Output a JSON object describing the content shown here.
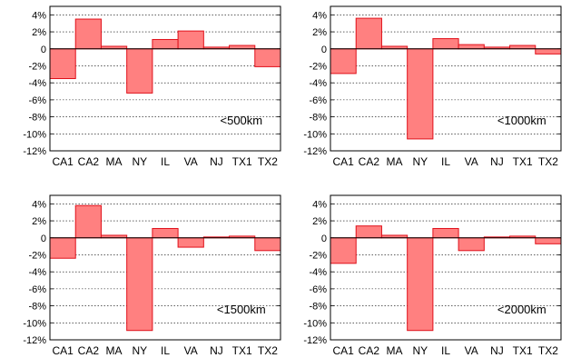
{
  "chart_data": [
    {
      "type": "bar",
      "annotation": "<500km",
      "categories": [
        "CA1",
        "CA2",
        "MA",
        "NY",
        "IL",
        "VA",
        "NJ",
        "TX1",
        "TX2"
      ],
      "values": [
        -3.5,
        3.5,
        0.3,
        -5.2,
        1.1,
        2.1,
        0.2,
        0.4,
        -2.1
      ],
      "ylim": [
        -12,
        5
      ],
      "yticks": [
        -12,
        -10,
        -8,
        -6,
        -4,
        -2,
        0,
        2,
        4
      ],
      "ytick_labels": [
        "-12%",
        "-10%",
        "-8%",
        "-6%",
        "-4%",
        "-2%",
        "0",
        "2%",
        "4%"
      ],
      "grid": true,
      "bar_color": "#ff8080",
      "edge_color": "#e0101a"
    },
    {
      "type": "bar",
      "annotation": "<1000km",
      "categories": [
        "CA1",
        "CA2",
        "MA",
        "NY",
        "IL",
        "VA",
        "NJ",
        "TX1",
        "TX2"
      ],
      "values": [
        -2.9,
        3.6,
        0.3,
        -10.6,
        1.2,
        0.5,
        0.2,
        0.4,
        -0.6
      ],
      "ylim": [
        -12,
        5
      ],
      "yticks": [
        -12,
        -10,
        -8,
        -6,
        -4,
        -2,
        0,
        2,
        4
      ],
      "ytick_labels": [
        "-12%",
        "-10%",
        "-8%",
        "-6%",
        "-4%",
        "-2%",
        "0",
        "2%",
        "4%"
      ],
      "grid": true,
      "bar_color": "#ff8080",
      "edge_color": "#e0101a"
    },
    {
      "type": "bar",
      "annotation": "<1500km",
      "categories": [
        "CA1",
        "CA2",
        "MA",
        "NY",
        "IL",
        "VA",
        "NJ",
        "TX1",
        "TX2"
      ],
      "values": [
        -2.4,
        3.8,
        0.3,
        -10.9,
        1.1,
        -1.1,
        0.1,
        0.2,
        -1.5
      ],
      "ylim": [
        -12,
        5
      ],
      "yticks": [
        -12,
        -10,
        -8,
        -6,
        -4,
        -2,
        0,
        2,
        4
      ],
      "ytick_labels": [
        "-12%",
        "-10%",
        "-8%",
        "-6%",
        "-4%",
        "-2%",
        "0",
        "2%",
        "4%"
      ],
      "grid": true,
      "bar_color": "#ff8080",
      "edge_color": "#e0101a"
    },
    {
      "type": "bar",
      "annotation": "<2000km",
      "categories": [
        "CA1",
        "CA2",
        "MA",
        "NY",
        "IL",
        "VA",
        "NJ",
        "TX1",
        "TX2"
      ],
      "values": [
        -3.0,
        1.4,
        0.3,
        -10.9,
        1.1,
        -1.5,
        0.1,
        0.2,
        -0.7
      ],
      "ylim": [
        -12,
        5
      ],
      "yticks": [
        -12,
        -10,
        -8,
        -6,
        -4,
        -2,
        0,
        2,
        4
      ],
      "ytick_labels": [
        "-12%",
        "-10%",
        "-8%",
        "-6%",
        "-4%",
        "-2%",
        "0",
        "2%",
        "4%"
      ],
      "grid": true,
      "bar_color": "#ff8080",
      "edge_color": "#e0101a"
    }
  ]
}
